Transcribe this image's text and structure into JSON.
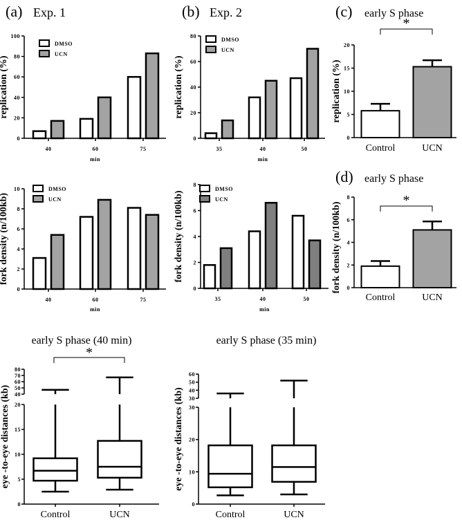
{
  "colors": {
    "ucn": "#a3a3a3",
    "ucn_dark": "#7f7f7f",
    "dmso": "#ffffff"
  },
  "chart_data": [
    {
      "id": "a1",
      "type": "bar",
      "panel": "(a)",
      "title": "Exp. 1",
      "ylabel": "replication (%)",
      "xlabel": "min",
      "categories": [
        "40",
        "60",
        "75"
      ],
      "ylim": [
        0,
        100
      ],
      "yticks": [
        "0",
        "20",
        "40",
        "60",
        "80",
        "100"
      ],
      "legend": [
        "DMSO",
        "UCN"
      ],
      "legend_position": "top-left",
      "series": [
        {
          "name": "DMSO",
          "values": [
            7,
            19,
            60
          ]
        },
        {
          "name": "UCN",
          "values": [
            17,
            40,
            83
          ]
        }
      ]
    },
    {
      "id": "b1",
      "type": "bar",
      "panel": "(b)",
      "title": "Exp. 2",
      "ylabel": "replication (%)",
      "xlabel": "min",
      "categories": [
        "35",
        "40",
        "50"
      ],
      "ylim": [
        0,
        80
      ],
      "yticks": [
        "0",
        "20",
        "40",
        "60",
        "80"
      ],
      "legend": [
        "DMSO",
        "UCN"
      ],
      "legend_position": "top-left",
      "series": [
        {
          "name": "DMSO",
          "values": [
            4,
            32,
            47
          ]
        },
        {
          "name": "UCN",
          "values": [
            14,
            45,
            70
          ]
        }
      ]
    },
    {
      "id": "c",
      "type": "bar",
      "panel": "(c)",
      "title": "early S phase",
      "ylabel": "replication (%)",
      "categories": [
        "Control",
        "UCN"
      ],
      "ylim": [
        0,
        20
      ],
      "yticks": [
        "0",
        "5",
        "10",
        "15",
        "20"
      ],
      "values": [
        5.8,
        15.3
      ],
      "errors": [
        1.5,
        1.4
      ],
      "significance": "*"
    },
    {
      "id": "a2",
      "type": "bar",
      "ylabel": "fork density  (n/100kb)",
      "xlabel": "min",
      "categories": [
        "40",
        "60",
        "75"
      ],
      "ylim": [
        0,
        10
      ],
      "yticks": [
        "0",
        "2",
        "4",
        "6",
        "8",
        "10"
      ],
      "legend": [
        "DMSO",
        "UCN"
      ],
      "legend_position": "top-left",
      "series": [
        {
          "name": "DMSO",
          "values": [
            3.1,
            7.2,
            8.1
          ]
        },
        {
          "name": "UCN",
          "values": [
            5.4,
            8.9,
            7.4
          ]
        }
      ]
    },
    {
      "id": "b2",
      "type": "bar",
      "ylabel": "fork density  (n/100kb)",
      "xlabel": "min",
      "categories": [
        "35",
        "40",
        "50"
      ],
      "ylim": [
        0,
        8
      ],
      "yticks": [
        "0",
        "2",
        "4",
        "6",
        "8"
      ],
      "legend": [
        "DMSO",
        "UCN"
      ],
      "legend_position": "top-left",
      "series": [
        {
          "name": "DMSO",
          "values": [
            1.8,
            4.4,
            5.6
          ]
        },
        {
          "name": "UCN",
          "values": [
            3.1,
            6.6,
            3.7
          ]
        }
      ]
    },
    {
      "id": "d",
      "type": "bar",
      "panel": "(d)",
      "title": "early S phase",
      "ylabel": "fork density  (n/100kb)",
      "categories": [
        "Control",
        "UCN"
      ],
      "ylim": [
        0,
        8
      ],
      "yticks": [
        "0",
        "2",
        "4",
        "6",
        "8"
      ],
      "values": [
        1.9,
        5.1
      ],
      "errors": [
        0.45,
        0.75
      ],
      "significance": "*"
    },
    {
      "id": "boxa",
      "type": "box",
      "title": "early S phase  (40 min)",
      "ylabel": "eye -to-eye distances (kb)",
      "categories": [
        "Control",
        "UCN"
      ],
      "ylim_lower": [
        0,
        20
      ],
      "yticks_lower": [
        "0",
        "5",
        "10",
        "15",
        "20"
      ],
      "ylim_upper": [
        40,
        80
      ],
      "yticks_upper": [
        "40",
        "50",
        "60",
        "70",
        "80"
      ],
      "significance": "*",
      "boxes": [
        {
          "min": 2.5,
          "q1": 4.7,
          "median": 6.7,
          "q3": 9.2,
          "max": 47
        },
        {
          "min": 2.9,
          "q1": 5.3,
          "median": 7.5,
          "q3": 12.7,
          "max": 67
        }
      ]
    },
    {
      "id": "boxb",
      "type": "box",
      "title": "early S phase (35 min)",
      "ylabel": "eye -to-eye distances (kb)",
      "categories": [
        "Control",
        "UCN"
      ],
      "ylim_lower": [
        0,
        30
      ],
      "yticks_lower": [
        "0",
        "10",
        "20",
        "30"
      ],
      "ylim_upper": [
        30,
        60
      ],
      "yticks_upper": [
        "30",
        "40",
        "50",
        "60"
      ],
      "boxes": [
        {
          "min": 2.7,
          "q1": 5.2,
          "median": 9.4,
          "q3": 18.2,
          "max": 36
        },
        {
          "min": 3.0,
          "q1": 6.9,
          "median": 11.5,
          "q3": 18.2,
          "max": 52
        }
      ]
    }
  ]
}
